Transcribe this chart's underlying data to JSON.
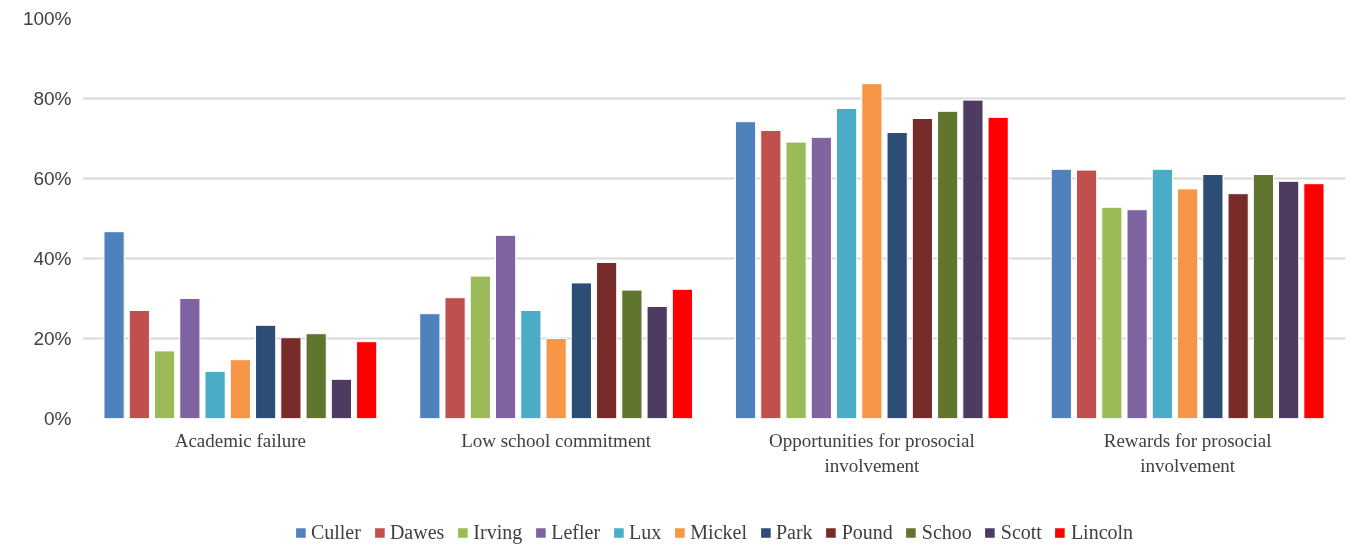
{
  "chart_data": {
    "type": "bar",
    "categories": [
      "Academic failure",
      "Low school commitment",
      "Opportunities for prosocial involvement",
      "Rewards for prosocial involvement"
    ],
    "series": [
      {
        "name": "Culler",
        "color": "#4f81bd",
        "values": [
          46.7,
          26.2,
          74.2,
          62.3
        ]
      },
      {
        "name": "Dawes",
        "color": "#c0504d",
        "values": [
          27.0,
          30.2,
          72.0,
          62.1
        ]
      },
      {
        "name": "Irving",
        "color": "#9bbb59",
        "values": [
          16.9,
          35.6,
          69.1,
          52.8
        ]
      },
      {
        "name": "Lefler",
        "color": "#8064a2",
        "values": [
          30.0,
          45.8,
          70.3,
          52.2
        ]
      },
      {
        "name": "Lux",
        "color": "#4bacc6",
        "values": [
          11.8,
          27.0,
          77.5,
          62.3
        ]
      },
      {
        "name": "Mickel",
        "color": "#f79646",
        "values": [
          14.7,
          20.0,
          83.7,
          57.4
        ]
      },
      {
        "name": "Park",
        "color": "#2c4d75",
        "values": [
          23.3,
          33.9,
          71.5,
          61.0
        ]
      },
      {
        "name": "Pound",
        "color": "#772c2a",
        "values": [
          20.2,
          39.0,
          75.0,
          56.2
        ]
      },
      {
        "name": "Schoo",
        "color": "#5f7530",
        "values": [
          21.2,
          32.1,
          76.8,
          61.0
        ]
      },
      {
        "name": "Scott",
        "color": "#4d3b62",
        "values": [
          9.8,
          28.0,
          79.6,
          59.3
        ]
      },
      {
        "name": "Lincoln",
        "color": "#ff0000",
        "values": [
          19.2,
          32.3,
          75.3,
          58.7
        ]
      }
    ],
    "ylim": [
      0,
      100
    ],
    "yticks": [
      {
        "value": 0,
        "label": "0%"
      },
      {
        "value": 20,
        "label": "20%"
      },
      {
        "value": 40,
        "label": "40%"
      },
      {
        "value": 60,
        "label": "60%"
      },
      {
        "value": 80,
        "label": "80%"
      },
      {
        "value": 100,
        "label": "100%"
      }
    ],
    "grid": "y",
    "legend": "bottom"
  }
}
